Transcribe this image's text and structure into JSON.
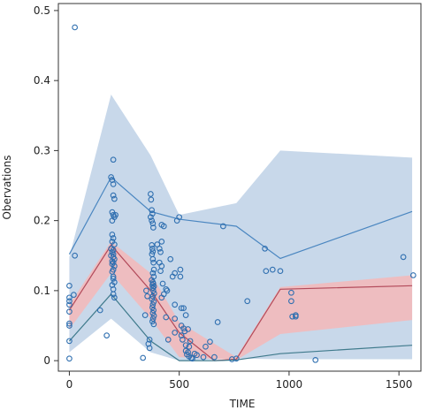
{
  "chart_data": {
    "type": "scatter",
    "title": "",
    "xlabel": "TIME",
    "ylabel": "Obervations",
    "xlim": [
      -50,
      1600
    ],
    "ylim": [
      -0.015,
      0.51
    ],
    "xticks": [
      0,
      500,
      1000,
      1500
    ],
    "yticks": [
      0,
      0.1,
      0.2,
      0.3,
      0.4,
      0.5
    ],
    "xtick_labels": [
      "0",
      "500",
      "1000",
      "1500"
    ],
    "ytick_labels": [
      "0",
      "0.1",
      "0.2",
      "0.3",
      "0.4",
      "0.5"
    ],
    "grid": false,
    "legend": "none",
    "colors": {
      "points": "#2f6fb0",
      "outer_band": "#c8d8ea",
      "median_band": "#f4b8b8",
      "upper_line": "#4a86c0",
      "median_line": "#b24a5a",
      "lower_line": "#3f7a8c",
      "axis": "#333333"
    },
    "points": [
      [
        25,
        0.476
      ],
      [
        0,
        0.107
      ],
      [
        0,
        0.09
      ],
      [
        0,
        0.085
      ],
      [
        0,
        0.08
      ],
      [
        0,
        0.07
      ],
      [
        0,
        0.053
      ],
      [
        0,
        0.05
      ],
      [
        0,
        0.028
      ],
      [
        0,
        0.003
      ],
      [
        20,
        0.094
      ],
      [
        25,
        0.15
      ],
      [
        140,
        0.072
      ],
      [
        170,
        0.036
      ],
      [
        190,
        0.262
      ],
      [
        195,
        0.258
      ],
      [
        200,
        0.287
      ],
      [
        200,
        0.252
      ],
      [
        200,
        0.236
      ],
      [
        205,
        0.231
      ],
      [
        195,
        0.212
      ],
      [
        200,
        0.208
      ],
      [
        205,
        0.205
      ],
      [
        195,
        0.2
      ],
      [
        210,
        0.208
      ],
      [
        195,
        0.18
      ],
      [
        200,
        0.175
      ],
      [
        195,
        0.17
      ],
      [
        205,
        0.166
      ],
      [
        190,
        0.16
      ],
      [
        200,
        0.158
      ],
      [
        195,
        0.155
      ],
      [
        200,
        0.152
      ],
      [
        190,
        0.15
      ],
      [
        200,
        0.148
      ],
      [
        205,
        0.145
      ],
      [
        195,
        0.142
      ],
      [
        200,
        0.14
      ],
      [
        195,
        0.138
      ],
      [
        205,
        0.135
      ],
      [
        200,
        0.13
      ],
      [
        195,
        0.127
      ],
      [
        200,
        0.12
      ],
      [
        200,
        0.117
      ],
      [
        205,
        0.112
      ],
      [
        195,
        0.108
      ],
      [
        200,
        0.102
      ],
      [
        200,
        0.095
      ],
      [
        205,
        0.09
      ],
      [
        335,
        0.004
      ],
      [
        345,
        0.065
      ],
      [
        350,
        0.1
      ],
      [
        355,
        0.092
      ],
      [
        360,
        0.024
      ],
      [
        365,
        0.03
      ],
      [
        365,
        0.018
      ],
      [
        370,
        0.238
      ],
      [
        372,
        0.23
      ],
      [
        375,
        0.215
      ],
      [
        378,
        0.21
      ],
      [
        370,
        0.205
      ],
      [
        375,
        0.2
      ],
      [
        380,
        0.196
      ],
      [
        382,
        0.19
      ],
      [
        375,
        0.165
      ],
      [
        378,
        0.16
      ],
      [
        380,
        0.156
      ],
      [
        376,
        0.152
      ],
      [
        380,
        0.145
      ],
      [
        383,
        0.14
      ],
      [
        385,
        0.13
      ],
      [
        380,
        0.125
      ],
      [
        384,
        0.12
      ],
      [
        375,
        0.115
      ],
      [
        380,
        0.112
      ],
      [
        382,
        0.11
      ],
      [
        378,
        0.108
      ],
      [
        385,
        0.106
      ],
      [
        380,
        0.104
      ],
      [
        382,
        0.1
      ],
      [
        386,
        0.096
      ],
      [
        380,
        0.092
      ],
      [
        376,
        0.088
      ],
      [
        384,
        0.084
      ],
      [
        380,
        0.08
      ],
      [
        378,
        0.076
      ],
      [
        383,
        0.072
      ],
      [
        380,
        0.068
      ],
      [
        385,
        0.064
      ],
      [
        381,
        0.06
      ],
      [
        378,
        0.056
      ],
      [
        384,
        0.052
      ],
      [
        400,
        0.166
      ],
      [
        410,
        0.16
      ],
      [
        415,
        0.155
      ],
      [
        410,
        0.14
      ],
      [
        420,
        0.135
      ],
      [
        415,
        0.128
      ],
      [
        420,
        0.194
      ],
      [
        430,
        0.192
      ],
      [
        420,
        0.17
      ],
      [
        425,
        0.11
      ],
      [
        430,
        0.095
      ],
      [
        420,
        0.09
      ],
      [
        440,
        0.102
      ],
      [
        445,
        0.1
      ],
      [
        440,
        0.062
      ],
      [
        450,
        0.03
      ],
      [
        460,
        0.145
      ],
      [
        470,
        0.12
      ],
      [
        480,
        0.125
      ],
      [
        480,
        0.08
      ],
      [
        480,
        0.06
      ],
      [
        480,
        0.04
      ],
      [
        490,
        0.2
      ],
      [
        500,
        0.205
      ],
      [
        505,
        0.13
      ],
      [
        505,
        0.12
      ],
      [
        510,
        0.075
      ],
      [
        510,
        0.05
      ],
      [
        510,
        0.036
      ],
      [
        515,
        0.03
      ],
      [
        520,
        0.075
      ],
      [
        520,
        0.046
      ],
      [
        525,
        0.042
      ],
      [
        530,
        0.065
      ],
      [
        530,
        0.022
      ],
      [
        530,
        0.014
      ],
      [
        535,
        0.009
      ],
      [
        540,
        0.045
      ],
      [
        540,
        0.012
      ],
      [
        545,
        0.02
      ],
      [
        545,
        0.006
      ],
      [
        550,
        0.028
      ],
      [
        555,
        0.004
      ],
      [
        560,
        0.003
      ],
      [
        570,
        0.01
      ],
      [
        580,
        0.008
      ],
      [
        610,
        0.005
      ],
      [
        620,
        0.02
      ],
      [
        640,
        0.027
      ],
      [
        660,
        0.005
      ],
      [
        675,
        0.055
      ],
      [
        700,
        0.192
      ],
      [
        740,
        0.002
      ],
      [
        760,
        0.003
      ],
      [
        810,
        0.085
      ],
      [
        890,
        0.16
      ],
      [
        895,
        0.128
      ],
      [
        925,
        0.13
      ],
      [
        960,
        0.128
      ],
      [
        1010,
        0.097
      ],
      [
        1010,
        0.085
      ],
      [
        1015,
        0.063
      ],
      [
        1030,
        0.063
      ],
      [
        1030,
        0.065
      ],
      [
        1120,
        0.001
      ],
      [
        1520,
        0.148
      ],
      [
        1565,
        0.122
      ]
    ],
    "outer_band": {
      "x": [
        0,
        190,
        370,
        500,
        760,
        960,
        1560
      ],
      "upper": [
        0.148,
        0.38,
        0.293,
        0.208,
        0.225,
        0.3,
        0.29
      ],
      "lower": [
        0.012,
        0.06,
        0.012,
        0.0,
        0.003,
        0.002,
        0.002
      ]
    },
    "median_band": {
      "x": [
        0,
        190,
        370,
        500,
        760,
        960,
        1560
      ],
      "upper": [
        0.08,
        0.17,
        0.125,
        0.055,
        0.005,
        0.105,
        0.122
      ],
      "lower": [
        0.045,
        0.125,
        0.06,
        0.005,
        0.001,
        0.038,
        0.058
      ]
    },
    "upper_line": {
      "x": [
        0,
        190,
        370,
        500,
        760,
        960,
        1560
      ],
      "y": [
        0.152,
        0.262,
        0.213,
        0.202,
        0.192,
        0.146,
        0.213
      ]
    },
    "median_line": {
      "x": [
        0,
        190,
        370,
        500,
        660,
        760,
        960,
        1560
      ],
      "y": [
        0.072,
        0.165,
        0.1,
        0.04,
        0.0,
        0.002,
        0.102,
        0.107
      ]
    },
    "lower_line": {
      "x": [
        0,
        190,
        370,
        500,
        660,
        760,
        960,
        1560
      ],
      "y": [
        0.028,
        0.095,
        0.028,
        0.0,
        0.0,
        0.001,
        0.01,
        0.022
      ]
    }
  }
}
